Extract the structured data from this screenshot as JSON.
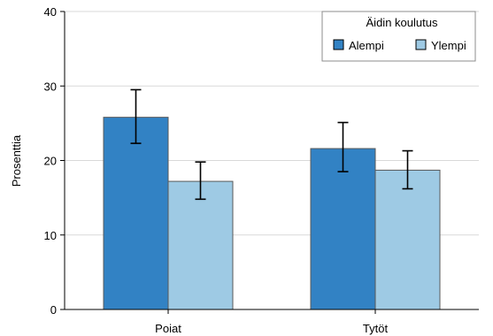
{
  "chart_data": {
    "type": "bar",
    "title": "",
    "xlabel": "",
    "ylabel": "Prosenttia",
    "ylim": [
      0,
      40
    ],
    "yticks": [
      0,
      10,
      20,
      30,
      40
    ],
    "grid": true,
    "categories": [
      "Poiat",
      "Tytöt"
    ],
    "legend": {
      "title": "Äidin koulutus",
      "position": "top-right"
    },
    "series": [
      {
        "name": "Alempi",
        "color": "#3282c4",
        "values": [
          25.8,
          21.6
        ],
        "error_low": [
          22.3,
          18.5
        ],
        "error_high": [
          29.5,
          25.1
        ]
      },
      {
        "name": "Ylempi",
        "color": "#9ecae4",
        "values": [
          17.2,
          18.7
        ],
        "error_low": [
          14.8,
          16.2
        ],
        "error_high": [
          19.8,
          21.3
        ]
      }
    ]
  }
}
